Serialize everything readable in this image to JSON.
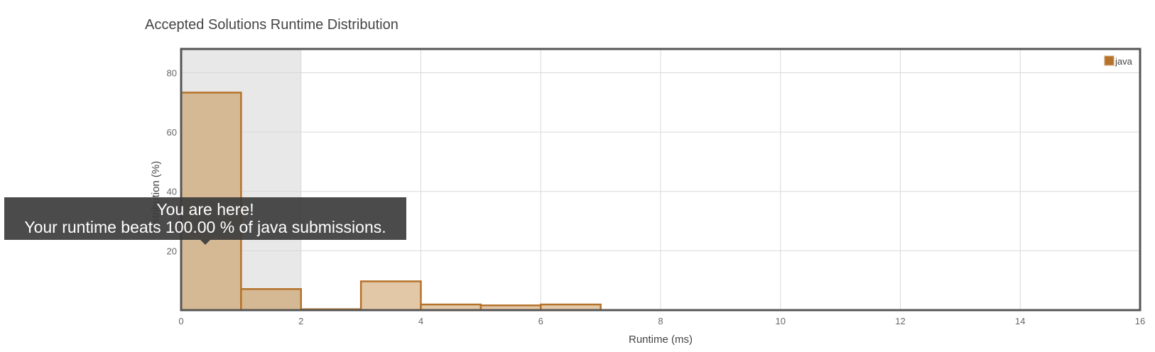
{
  "chart_data": {
    "type": "bar",
    "title": "Accepted Solutions Runtime Distribution",
    "xlabel": "Runtime (ms)",
    "ylabel": "Distribution (%)",
    "xlim": [
      0,
      16
    ],
    "ylim": [
      0,
      88
    ],
    "x_ticks": [
      0,
      2,
      4,
      6,
      8,
      10,
      12,
      14,
      16
    ],
    "y_ticks": [
      20,
      40,
      60,
      80
    ],
    "grid": true,
    "highlight_range": [
      0,
      2
    ],
    "legend": {
      "placement": "top-right",
      "entries": [
        "java"
      ]
    },
    "series": [
      {
        "name": "java",
        "color": "#b5722b",
        "bins": [
          {
            "x0": 0,
            "x1": 1,
            "value": 73.3
          },
          {
            "x0": 1,
            "x1": 2,
            "value": 7.1
          },
          {
            "x0": 2,
            "x1": 3,
            "value": 0.3
          },
          {
            "x0": 3,
            "x1": 4,
            "value": 9.7
          },
          {
            "x0": 4,
            "x1": 5,
            "value": 1.9
          },
          {
            "x0": 5,
            "x1": 6,
            "value": 1.6
          },
          {
            "x0": 6,
            "x1": 7,
            "value": 1.9
          }
        ]
      }
    ]
  },
  "tooltip": {
    "line1": "You are here!",
    "line2": "Your runtime beats 100.00 % of java submissions."
  },
  "colors": {
    "bar_fill_highlight": "#d5b994",
    "bar_fill": "#e3c8a7",
    "bar_stroke": "#b5722b",
    "highlight_band": "#e8e8e8",
    "grid": "#d9d9d9",
    "frame": "#555555"
  }
}
